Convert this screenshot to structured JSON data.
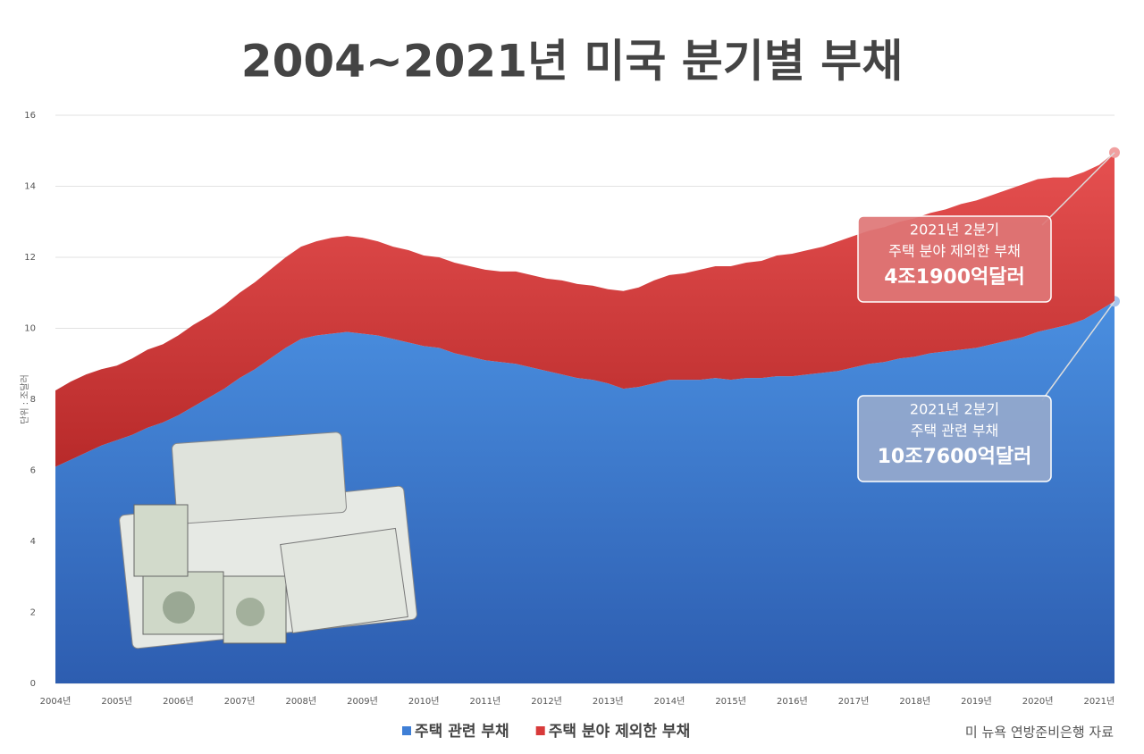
{
  "chart_data": {
    "type": "stacked-area",
    "title": "2004~2021년 미국 분기별 부채",
    "y_label": "단위 : 조달러",
    "source": "미 뉴욕 연방준비은행 자료",
    "categories": [
      "2004년",
      null,
      null,
      null,
      "2005년",
      null,
      null,
      null,
      "2006년",
      null,
      null,
      null,
      "2007년",
      null,
      null,
      null,
      "2008년",
      null,
      null,
      null,
      "2009년",
      null,
      null,
      null,
      "2010년",
      null,
      null,
      null,
      "2011년",
      null,
      null,
      null,
      "2012년",
      null,
      null,
      null,
      "2013년",
      null,
      null,
      null,
      "2014년",
      null,
      null,
      null,
      "2015년",
      null,
      null,
      null,
      "2016년",
      null,
      null,
      null,
      "2017년",
      null,
      null,
      null,
      "2018년",
      null,
      null,
      null,
      "2019년",
      null,
      null,
      null,
      "2020년",
      null,
      null,
      null,
      "2021년",
      null
    ],
    "series": [
      {
        "name": "주택 관련 부채",
        "color": "#3f7fd6",
        "values": [
          6.1,
          6.3,
          6.5,
          6.7,
          6.85,
          7.0,
          7.2,
          7.35,
          7.55,
          7.8,
          8.05,
          8.3,
          8.6,
          8.85,
          9.15,
          9.45,
          9.7,
          9.8,
          9.85,
          9.9,
          9.85,
          9.8,
          9.7,
          9.6,
          9.5,
          9.45,
          9.3,
          9.2,
          9.1,
          9.05,
          9.0,
          8.9,
          8.8,
          8.7,
          8.6,
          8.55,
          8.45,
          8.3,
          8.35,
          8.45,
          8.55,
          8.55,
          8.55,
          8.6,
          8.55,
          8.6,
          8.6,
          8.65,
          8.65,
          8.7,
          8.75,
          8.8,
          8.9,
          9.0,
          9.05,
          9.15,
          9.2,
          9.3,
          9.35,
          9.4,
          9.45,
          9.55,
          9.65,
          9.75,
          9.9,
          10.0,
          10.1,
          10.25,
          10.5,
          10.76
        ]
      },
      {
        "name": "주택 분야 제외한 부채",
        "color": "#d83a3a",
        "values": [
          2.15,
          2.2,
          2.2,
          2.15,
          2.1,
          2.15,
          2.2,
          2.2,
          2.25,
          2.3,
          2.3,
          2.35,
          2.4,
          2.45,
          2.5,
          2.55,
          2.6,
          2.65,
          2.7,
          2.7,
          2.7,
          2.65,
          2.6,
          2.6,
          2.55,
          2.55,
          2.55,
          2.55,
          2.55,
          2.55,
          2.6,
          2.6,
          2.6,
          2.65,
          2.65,
          2.65,
          2.65,
          2.75,
          2.8,
          2.9,
          2.95,
          3.0,
          3.1,
          3.15,
          3.2,
          3.25,
          3.3,
          3.4,
          3.45,
          3.5,
          3.55,
          3.65,
          3.7,
          3.75,
          3.8,
          3.85,
          3.9,
          3.95,
          4.0,
          4.1,
          4.15,
          4.2,
          4.25,
          4.3,
          4.3,
          4.25,
          4.15,
          4.15,
          4.1,
          4.19
        ]
      }
    ],
    "annotations": [
      {
        "lines": [
          "2021년 2분기",
          "주택 분야 제외한 부채",
          "4조1900억달러"
        ]
      },
      {
        "lines": [
          "2021년 2분기",
          "주택 관련 부채",
          "10조7600억달러"
        ]
      }
    ],
    "ylim": [
      0,
      16
    ],
    "yticks": [
      0,
      2,
      4,
      6,
      8,
      10,
      12,
      14,
      16
    ],
    "grid": true
  }
}
